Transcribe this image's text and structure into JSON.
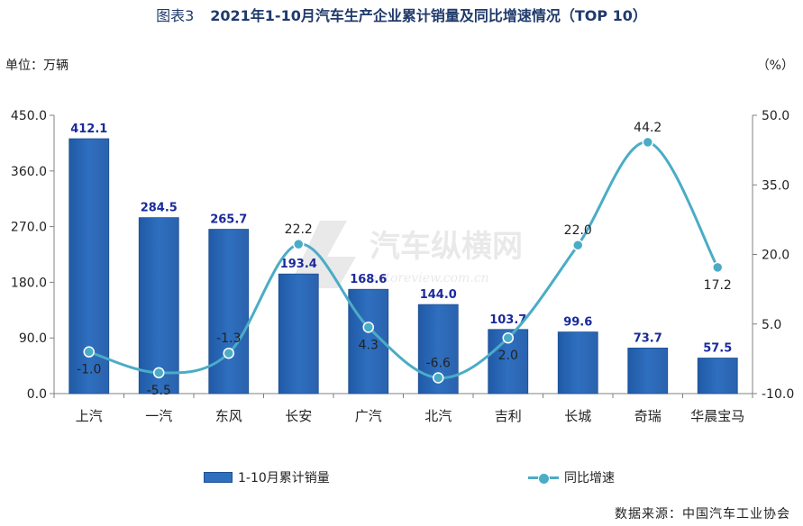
{
  "header": {
    "figure_label": "图表3",
    "title": "2021年1-10月汽车生产企业累计销量及同比增速情况（TOP 10）"
  },
  "units": {
    "left": "单位：万辆",
    "right": "（%）"
  },
  "footer": {
    "source": "数据来源：中国汽车工业协会"
  },
  "watermark": {
    "brand": "汽车纵横网",
    "url": "autoreview.com.cn"
  },
  "colors": {
    "bar": "#2f6fbf",
    "bar_label": "#1a2a9c",
    "line": "#4bacc6"
  },
  "chart_data": {
    "type": "bar",
    "categories": [
      "上汽",
      "一汽",
      "东风",
      "长安",
      "广汽",
      "北汽",
      "吉利",
      "长城",
      "奇瑞",
      "华晨宝马"
    ],
    "series": [
      {
        "name": "1-10月累计销量",
        "type": "bar",
        "axis": "left",
        "values": [
          412.1,
          284.5,
          265.7,
          193.4,
          168.6,
          144.0,
          103.7,
          99.6,
          73.7,
          57.5
        ],
        "labels": [
          "412.1",
          "284.5",
          "265.7",
          "193.4",
          "168.6",
          "144.0",
          "103.7",
          "99.6",
          "73.7",
          "57.5"
        ]
      },
      {
        "name": "同比增速",
        "type": "line",
        "axis": "right",
        "smooth": true,
        "values": [
          -1.0,
          -5.5,
          -1.3,
          22.2,
          4.3,
          -6.6,
          2.0,
          22.0,
          44.2,
          17.2
        ],
        "labels": [
          "-1.0",
          "-5.5",
          "-1.3",
          "22.2",
          "4.3",
          "-6.6",
          "2.0",
          "22.0",
          "44.2",
          "17.2"
        ]
      }
    ],
    "y_left": {
      "min": 0,
      "max": 450,
      "ticks": [
        0,
        90,
        180,
        270,
        360,
        450
      ],
      "tick_labels": [
        "0.0",
        "90.0",
        "180.0",
        "270.0",
        "360.0",
        "450.0"
      ]
    },
    "y_right": {
      "min": -10,
      "max": 50,
      "ticks": [
        -10,
        5,
        20,
        35,
        50
      ],
      "tick_labels": [
        "-10.0",
        "5.0",
        "20.0",
        "35.0",
        "50.0"
      ]
    },
    "grid": false,
    "legend": "bottom"
  }
}
